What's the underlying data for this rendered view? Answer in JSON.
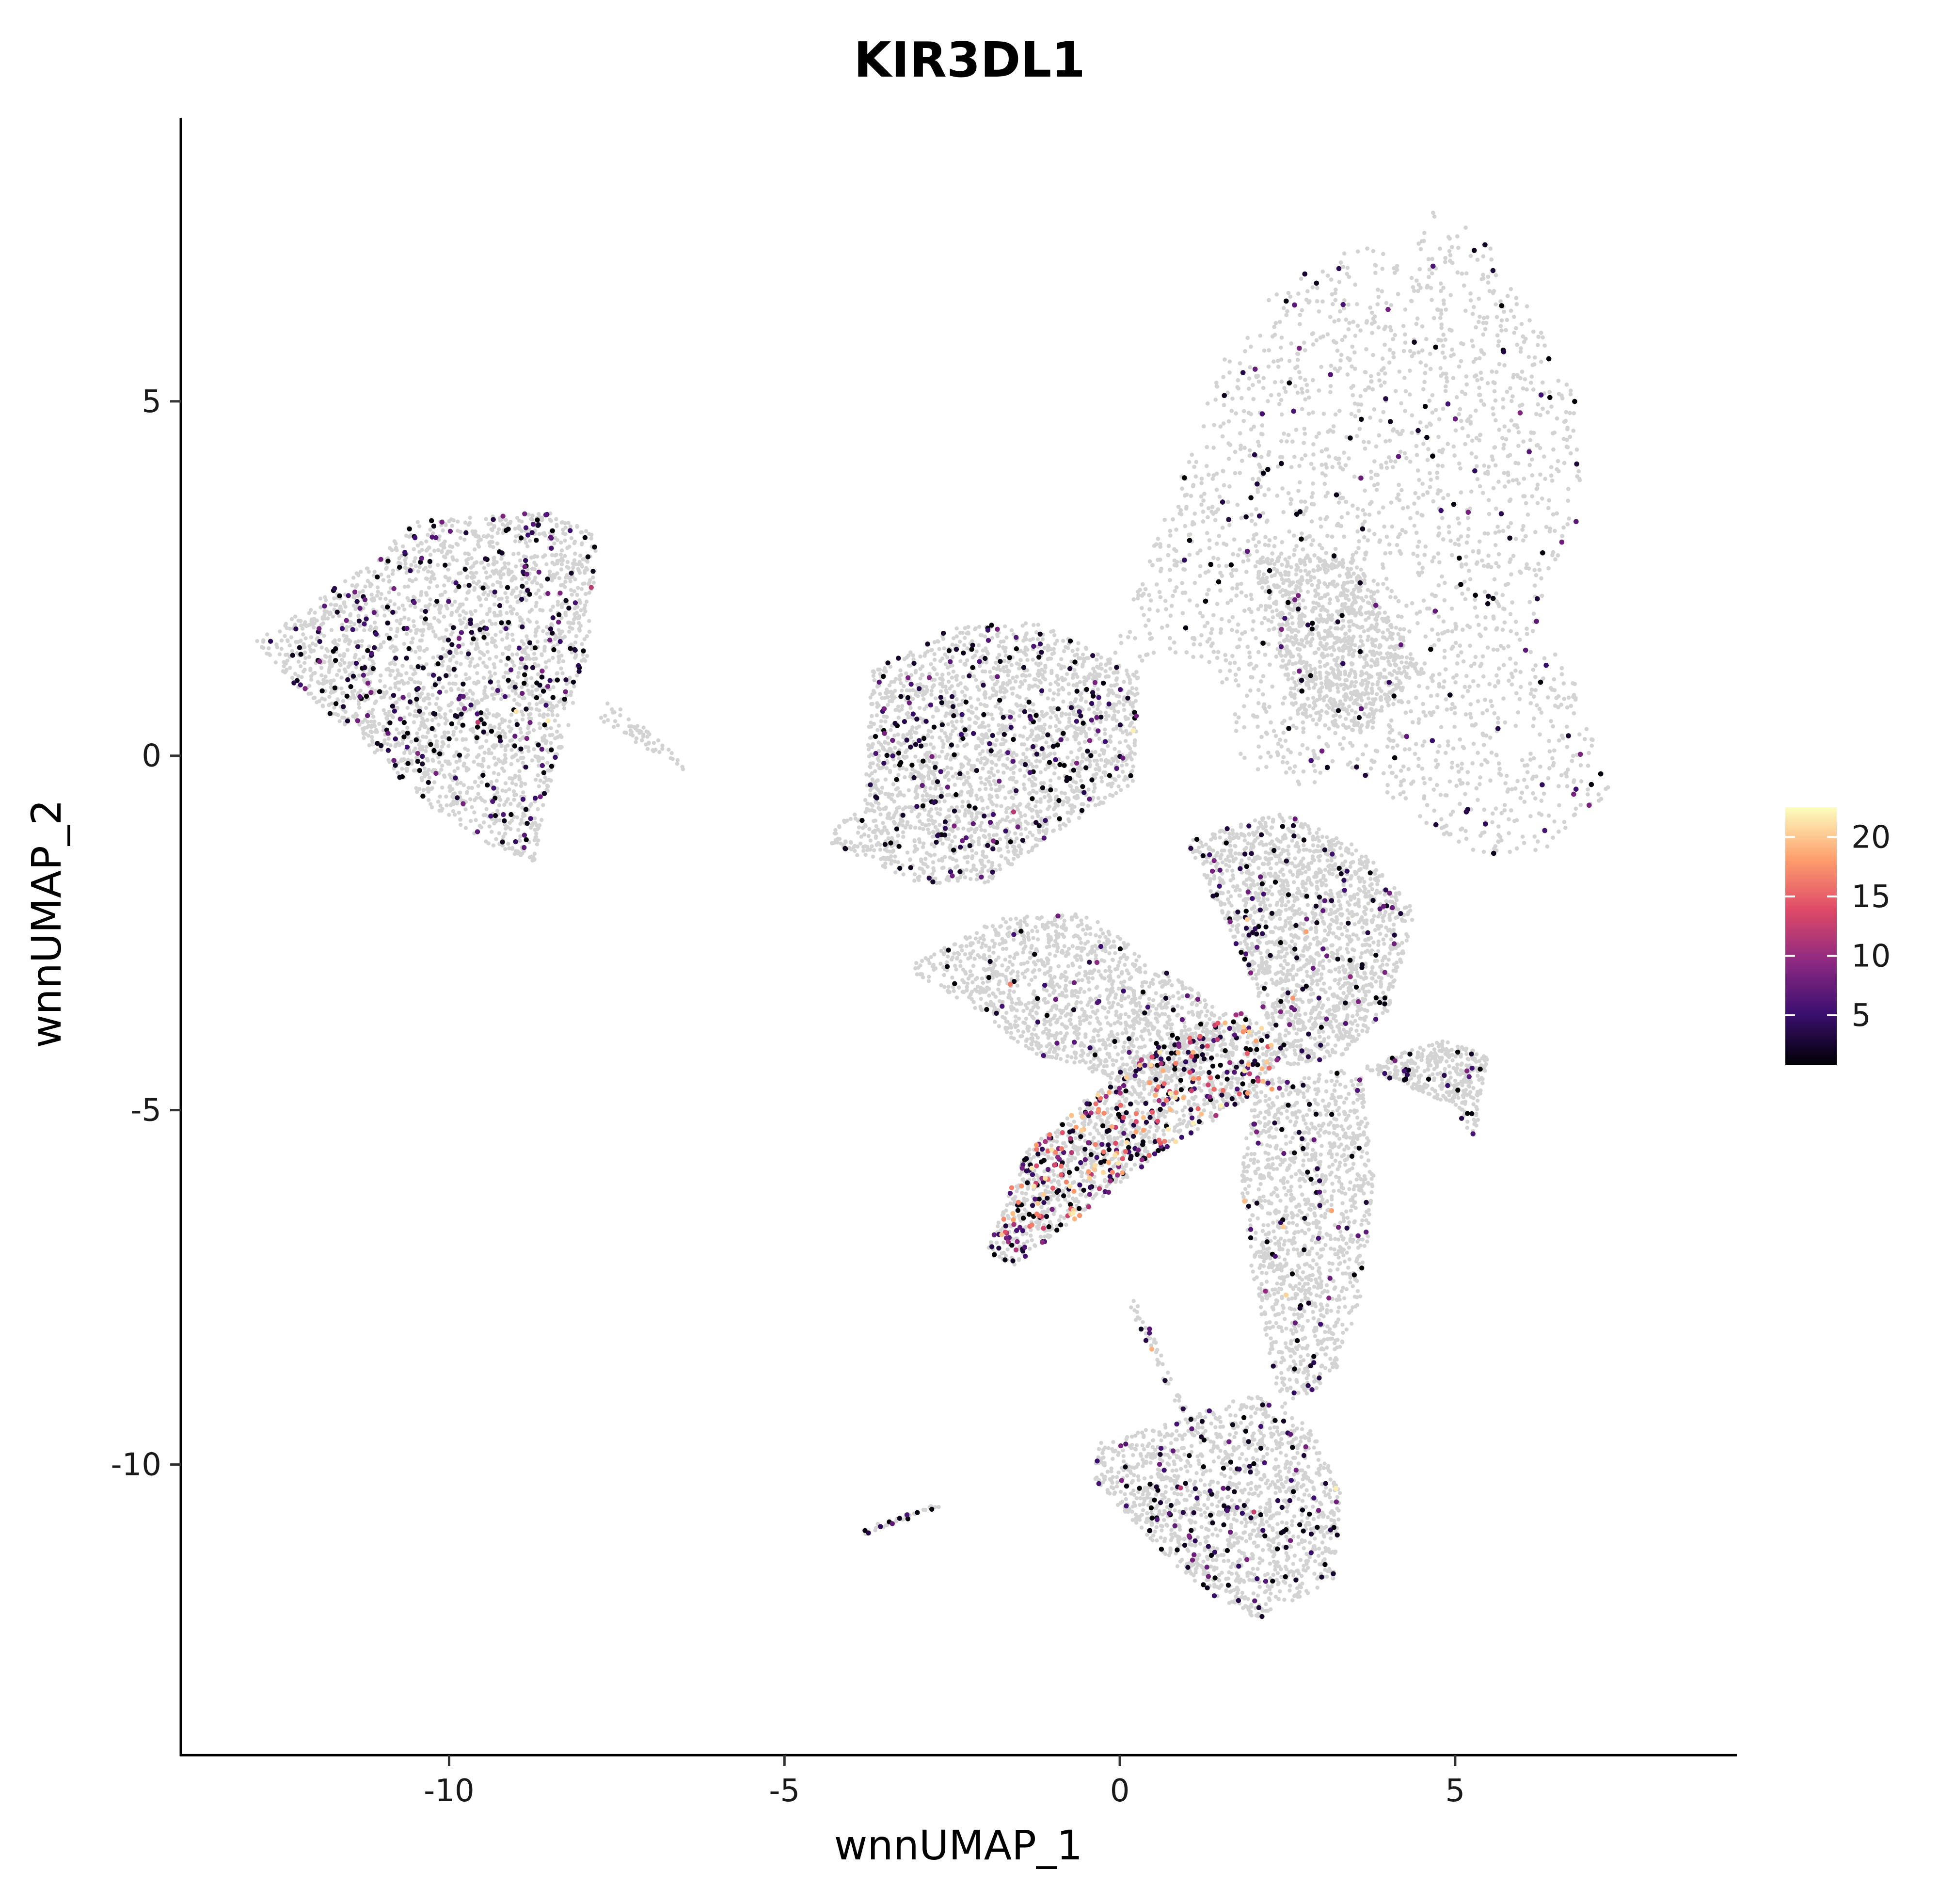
{
  "chart_data": {
    "type": "scatter",
    "title": "KIR3DL1",
    "xlabel": "wnnUMAP_1",
    "ylabel": "wnnUMAP_2",
    "xlim": [
      -14.0,
      9.2
    ],
    "ylim": [
      -14.1,
      9.0
    ],
    "x_ticks": [
      -10,
      -5,
      0,
      5
    ],
    "x_tick_labels": [
      "-10",
      "-5",
      "0",
      "5"
    ],
    "y_ticks": [
      5,
      0,
      -5,
      -10
    ],
    "y_tick_labels": [
      "5",
      "0",
      "-5",
      "-10"
    ],
    "grid": false,
    "background_color": "#d3d3d3",
    "colormap": [
      "#000004",
      "#3b0f70",
      "#8c2981",
      "#de4968",
      "#fe9f6d",
      "#fcfdbf"
    ],
    "color_scale": {
      "min": 0.8,
      "max": 22.5,
      "ticks": [
        5,
        10,
        15,
        20
      ],
      "tick_labels": [
        "5",
        "10",
        "15",
        "20"
      ],
      "legend_position": "right"
    },
    "background_clusters": [
      {
        "poly": [
          [
            -12.9,
            1.6
          ],
          [
            -11.5,
            2.5
          ],
          [
            -10.5,
            3.3
          ],
          [
            -8.5,
            3.45
          ],
          [
            -7.8,
            3.1
          ],
          [
            -7.9,
            1.5
          ],
          [
            -8.2,
            0.5
          ],
          [
            -8.6,
            -0.8
          ],
          [
            -8.7,
            -1.5
          ],
          [
            -9.3,
            -1.3
          ],
          [
            -10.2,
            -0.8
          ],
          [
            -11.4,
            0.3
          ],
          [
            -12.3,
            1.0
          ]
        ],
        "n": 2600,
        "expr_frac": 0.33,
        "hot": 0.02
      },
      {
        "poly": [
          [
            -7.8,
            0.5
          ],
          [
            -6.5,
            -0.2
          ],
          [
            -6.6,
            0.0
          ],
          [
            -7.6,
            0.8
          ]
        ],
        "n": 60,
        "expr_frac": 0.1,
        "hot": 0
      },
      {
        "poly": [
          [
            -4.4,
            -1.2
          ],
          [
            -3.8,
            -0.6
          ],
          [
            -3.7,
            1.2
          ],
          [
            -2.5,
            1.8
          ],
          [
            -1.2,
            1.9
          ],
          [
            0.3,
            1.1
          ],
          [
            0.2,
            -0.4
          ],
          [
            -0.8,
            -1.0
          ],
          [
            -2.0,
            -1.8
          ],
          [
            -3.0,
            -1.8
          ]
        ],
        "n": 2400,
        "expr_frac": 0.28,
        "hot": 0.02
      },
      {
        "poly": [
          [
            -0.5,
            0.5
          ],
          [
            0.6,
            3.2
          ],
          [
            1.5,
            5.5
          ],
          [
            2.2,
            6.5
          ],
          [
            3.5,
            7.2
          ],
          [
            4.4,
            7.1
          ],
          [
            4.7,
            7.8
          ],
          [
            5.5,
            7.2
          ],
          [
            6.3,
            6.0
          ],
          [
            6.8,
            5.0
          ],
          [
            6.9,
            3.5
          ],
          [
            6.2,
            2.0
          ],
          [
            6.8,
            1.0
          ],
          [
            7.3,
            -0.5
          ],
          [
            6.4,
            -1.3
          ],
          [
            5.6,
            -1.5
          ],
          [
            4.6,
            -1.0
          ],
          [
            3.5,
            -0.2
          ],
          [
            2.5,
            -0.5
          ],
          [
            1.8,
            -0.1
          ],
          [
            1.4,
            1.3
          ],
          [
            0.6,
            1.5
          ]
        ],
        "n": 9000,
        "expr_frac": 0.16,
        "hot": 0.01
      },
      {
        "poly": [
          [
            2.0,
            2.8
          ],
          [
            3.5,
            2.8
          ],
          [
            4.5,
            1.2
          ],
          [
            3.6,
            0.3
          ],
          [
            2.6,
            0.6
          ]
        ],
        "n": 900,
        "expr_frac": 0.05,
        "hot": 0
      },
      {
        "poly": [
          [
            1.0,
            -1.2
          ],
          [
            2.4,
            -0.8
          ],
          [
            3.6,
            -1.3
          ],
          [
            4.4,
            -2.2
          ],
          [
            4.0,
            -3.6
          ],
          [
            3.4,
            -4.2
          ],
          [
            2.5,
            -4.4
          ],
          [
            1.8,
            -2.8
          ],
          [
            1.4,
            -2.0
          ]
        ],
        "n": 1800,
        "expr_frac": 0.18,
        "hot": 0.06
      },
      {
        "poly": [
          [
            -3.2,
            -3.0
          ],
          [
            -1.8,
            -2.3
          ],
          [
            -0.5,
            -2.2
          ],
          [
            0.6,
            -3.0
          ],
          [
            1.6,
            -3.6
          ],
          [
            1.2,
            -4.6
          ],
          [
            0.0,
            -4.6
          ],
          [
            -1.3,
            -4.2
          ],
          [
            -2.3,
            -3.5
          ]
        ],
        "n": 1400,
        "expr_frac": 0.1,
        "hot": 0.02
      },
      {
        "poly": [
          [
            -2.0,
            -7.0
          ],
          [
            -1.4,
            -5.6
          ],
          [
            -0.6,
            -4.9
          ],
          [
            0.4,
            -4.2
          ],
          [
            1.8,
            -3.6
          ],
          [
            2.5,
            -4.1
          ],
          [
            2.0,
            -4.8
          ],
          [
            0.6,
            -5.6
          ],
          [
            -0.6,
            -6.5
          ],
          [
            -1.6,
            -7.2
          ]
        ],
        "n": 1500,
        "expr_frac": 0.85,
        "hot": 0.45
      },
      {
        "poly": [
          [
            2.0,
            -4.6
          ],
          [
            3.6,
            -4.4
          ],
          [
            3.8,
            -6.0
          ],
          [
            3.6,
            -7.6
          ],
          [
            3.2,
            -8.8
          ],
          [
            2.4,
            -9.2
          ],
          [
            2.0,
            -7.5
          ],
          [
            1.8,
            -6.0
          ]
        ],
        "n": 1300,
        "expr_frac": 0.14,
        "hot": 0.06
      },
      {
        "poly": [
          [
            3.6,
            -4.4
          ],
          [
            4.9,
            -4.9
          ],
          [
            5.3,
            -5.4
          ],
          [
            5.5,
            -4.2
          ],
          [
            4.8,
            -4.0
          ]
        ],
        "n": 400,
        "expr_frac": 0.2,
        "hot": 0.02
      },
      {
        "poly": [
          [
            -0.3,
            -9.7
          ],
          [
            0.8,
            -9.4
          ],
          [
            2.0,
            -9.0
          ],
          [
            2.8,
            -9.4
          ],
          [
            3.3,
            -10.4
          ],
          [
            3.2,
            -11.6
          ],
          [
            2.1,
            -12.2
          ],
          [
            1.3,
            -11.8
          ],
          [
            0.8,
            -11.4
          ],
          [
            -0.4,
            -10.2
          ]
        ],
        "n": 1500,
        "expr_frac": 0.3,
        "hot": 0.02
      },
      {
        "poly": [
          [
            0.2,
            -7.6
          ],
          [
            1.0,
            -9.2
          ],
          [
            0.9,
            -9.3
          ],
          [
            0.1,
            -7.7
          ]
        ],
        "n": 50,
        "expr_frac": 0.5,
        "hot": 0.1
      },
      {
        "poly": [
          [
            -3.8,
            -10.9
          ],
          [
            -2.6,
            -10.5
          ],
          [
            -2.7,
            -10.6
          ],
          [
            -3.8,
            -11.0
          ]
        ],
        "n": 40,
        "expr_frac": 0.6,
        "hot": 0
      }
    ]
  }
}
